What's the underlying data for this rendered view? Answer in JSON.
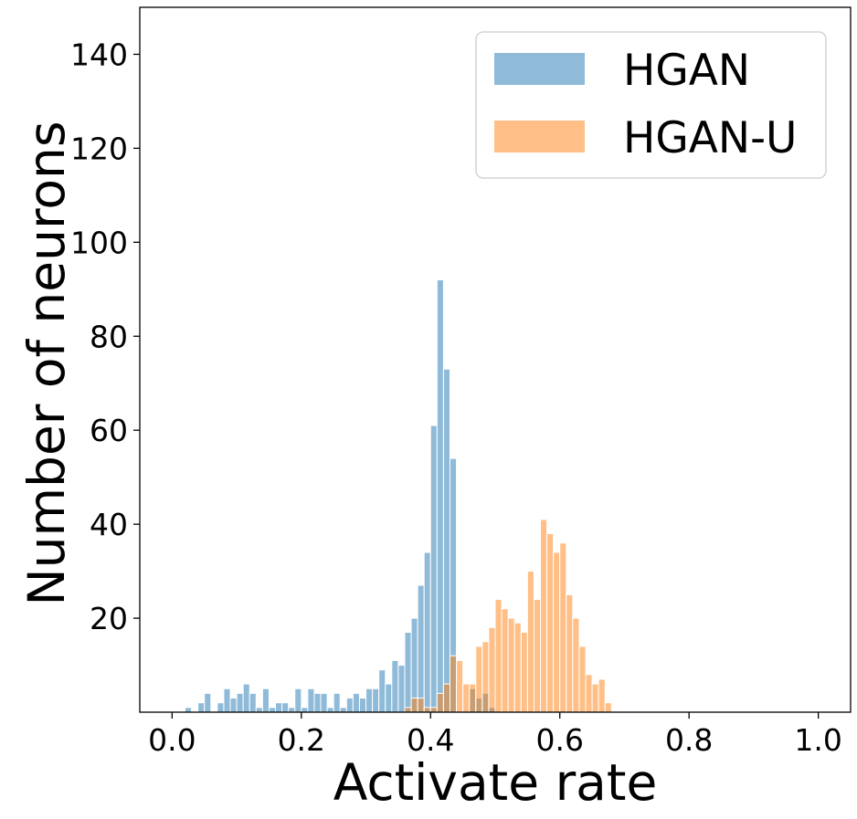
{
  "chart_data": {
    "type": "histogram",
    "title": "",
    "xlabel": "Activate rate",
    "ylabel": "Number of neurons",
    "xlim": [
      -0.05,
      1.05
    ],
    "ylim": [
      0,
      150
    ],
    "xticks": [
      "0.0",
      "0.2",
      "0.4",
      "0.6",
      "0.8",
      "1.0"
    ],
    "yticks": [
      "20",
      "40",
      "60",
      "80",
      "100",
      "120",
      "140"
    ],
    "bin_width": 0.01,
    "grid": false,
    "legend_position": "top-right",
    "series": [
      {
        "name": "HGAN",
        "color": "#1f77b4",
        "bins": [
          [
            0.02,
            1
          ],
          [
            0.03,
            0
          ],
          [
            0.04,
            2
          ],
          [
            0.05,
            4
          ],
          [
            0.06,
            0
          ],
          [
            0.07,
            2
          ],
          [
            0.08,
            5
          ],
          [
            0.09,
            3
          ],
          [
            0.1,
            4
          ],
          [
            0.11,
            6
          ],
          [
            0.12,
            4
          ],
          [
            0.13,
            1
          ],
          [
            0.14,
            5
          ],
          [
            0.15,
            1
          ],
          [
            0.16,
            2
          ],
          [
            0.17,
            2
          ],
          [
            0.18,
            1
          ],
          [
            0.19,
            5
          ],
          [
            0.2,
            1
          ],
          [
            0.21,
            5
          ],
          [
            0.22,
            4
          ],
          [
            0.23,
            4
          ],
          [
            0.24,
            1
          ],
          [
            0.25,
            4
          ],
          [
            0.26,
            1
          ],
          [
            0.27,
            3
          ],
          [
            0.28,
            4
          ],
          [
            0.29,
            3
          ],
          [
            0.3,
            5
          ],
          [
            0.31,
            5
          ],
          [
            0.32,
            9
          ],
          [
            0.33,
            6
          ],
          [
            0.34,
            11
          ],
          [
            0.35,
            10
          ],
          [
            0.36,
            17
          ],
          [
            0.37,
            20
          ],
          [
            0.38,
            27
          ],
          [
            0.39,
            34
          ],
          [
            0.4,
            61
          ],
          [
            0.41,
            92
          ],
          [
            0.42,
            73
          ],
          [
            0.43,
            54
          ],
          [
            0.44,
            0
          ],
          [
            0.45,
            0
          ],
          [
            0.46,
            5
          ],
          [
            0.47,
            3
          ],
          [
            0.48,
            4
          ],
          [
            0.49,
            1
          ]
        ]
      },
      {
        "name": "HGAN-U",
        "color": "#ff7f0e",
        "bins": [
          [
            0.36,
            1
          ],
          [
            0.37,
            3
          ],
          [
            0.38,
            3
          ],
          [
            0.39,
            1
          ],
          [
            0.4,
            1
          ],
          [
            0.41,
            4
          ],
          [
            0.42,
            6
          ],
          [
            0.43,
            12
          ],
          [
            0.44,
            11
          ],
          [
            0.45,
            6
          ],
          [
            0.46,
            6
          ],
          [
            0.47,
            14
          ],
          [
            0.48,
            15
          ],
          [
            0.49,
            18
          ],
          [
            0.5,
            24
          ],
          [
            0.51,
            22
          ],
          [
            0.52,
            20
          ],
          [
            0.53,
            19
          ],
          [
            0.54,
            17
          ],
          [
            0.55,
            30
          ],
          [
            0.56,
            24
          ],
          [
            0.57,
            41
          ],
          [
            0.58,
            38
          ],
          [
            0.59,
            34
          ],
          [
            0.6,
            36
          ],
          [
            0.61,
            25
          ],
          [
            0.62,
            20
          ],
          [
            0.63,
            14
          ],
          [
            0.64,
            8
          ],
          [
            0.65,
            6
          ],
          [
            0.66,
            7
          ],
          [
            0.67,
            2
          ]
        ]
      }
    ]
  }
}
